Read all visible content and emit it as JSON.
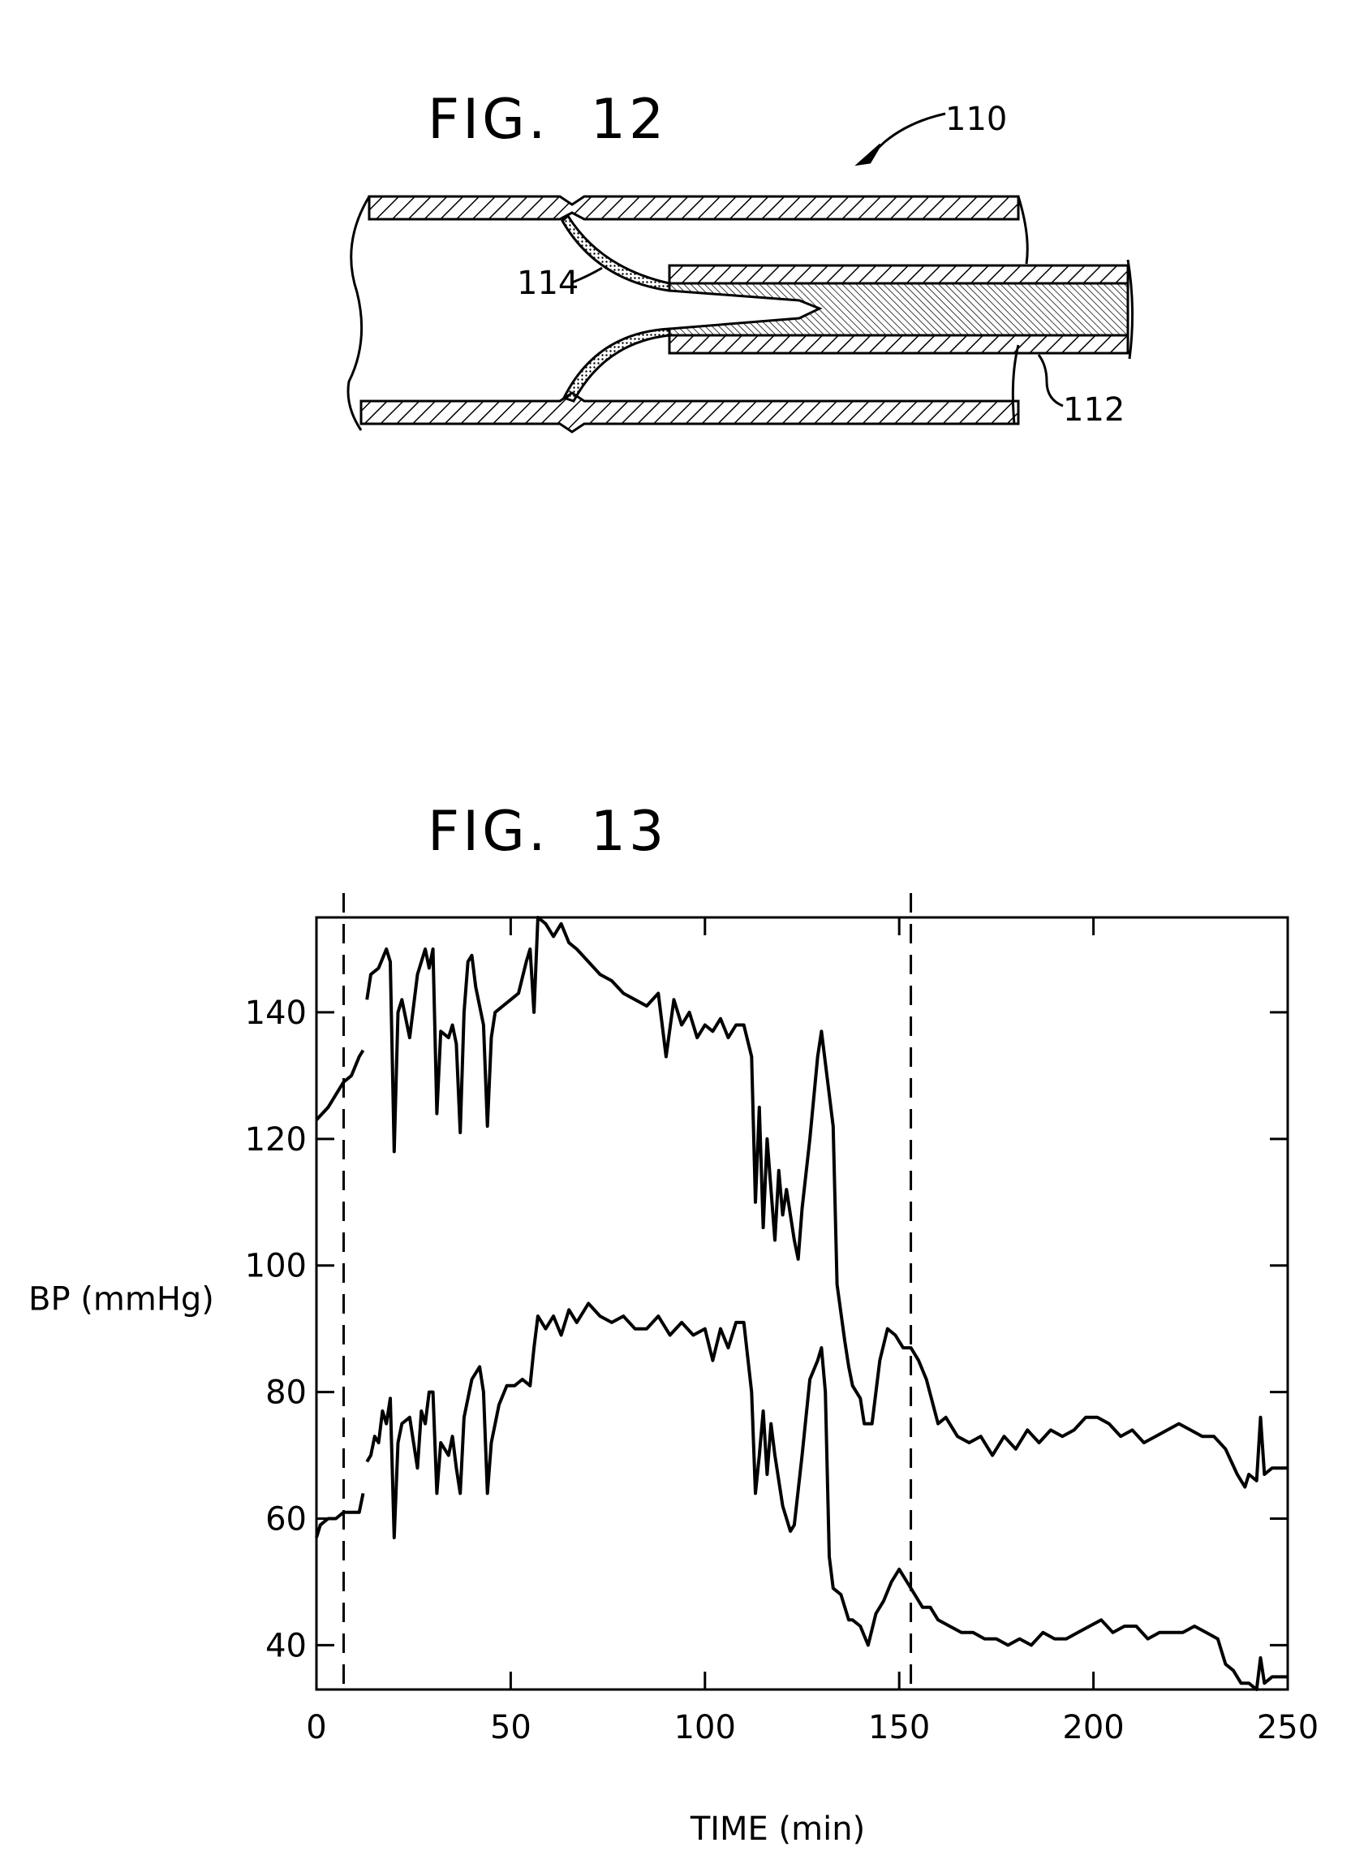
{
  "fig12": {
    "title": "FIG.  12",
    "ref_device": "110",
    "ref_flap": "114",
    "ref_catheter": "112"
  },
  "fig13": {
    "title": "FIG.  13"
  },
  "chart_data": {
    "type": "line",
    "title": "FIG.  13",
    "xlabel": "TIME (min)",
    "ylabel": "BP (mmHg)",
    "xlim": [
      0,
      250
    ],
    "ylim": [
      33,
      155
    ],
    "x_ticks": [
      0,
      50,
      100,
      150,
      200,
      250
    ],
    "y_ticks": [
      40,
      60,
      80,
      100,
      120,
      140
    ],
    "x_tick_labels": [
      "0",
      "50",
      "100",
      "150",
      "200",
      "250"
    ],
    "y_tick_labels": [
      "40",
      "60",
      "80",
      "100",
      "120",
      "140"
    ],
    "grid": false,
    "vertical_markers": [
      7,
      153
    ],
    "series": [
      {
        "segments": [
          [
            [
              0,
              123
            ],
            [
              3,
              125
            ],
            [
              5,
              127
            ],
            [
              7,
              129
            ],
            [
              9,
              130
            ],
            [
              11,
              133
            ],
            [
              12,
              134
            ]
          ],
          [
            [
              13,
              142
            ],
            [
              14,
              146
            ],
            [
              16,
              147
            ],
            [
              18,
              150
            ],
            [
              19,
              148
            ],
            [
              20,
              118
            ],
            [
              21,
              140
            ],
            [
              22,
              142
            ],
            [
              24,
              136
            ],
            [
              26,
              146
            ],
            [
              28,
              150
            ],
            [
              29,
              147
            ],
            [
              30,
              150
            ],
            [
              31,
              124
            ],
            [
              32,
              137
            ],
            [
              34,
              136
            ],
            [
              35,
              138
            ],
            [
              36,
              135
            ],
            [
              37,
              121
            ],
            [
              38,
              140
            ],
            [
              39,
              148
            ],
            [
              40,
              149
            ],
            [
              41,
              144
            ],
            [
              43,
              138
            ],
            [
              44,
              122
            ],
            [
              45,
              136
            ],
            [
              46,
              140
            ],
            [
              48,
              141
            ],
            [
              50,
              142
            ],
            [
              52,
              143
            ],
            [
              54,
              148
            ],
            [
              55,
              150
            ],
            [
              56,
              140
            ],
            [
              57,
              155
            ],
            [
              59,
              154
            ],
            [
              61,
              152
            ],
            [
              63,
              154
            ],
            [
              65,
              151
            ],
            [
              67,
              150
            ],
            [
              70,
              148
            ],
            [
              73,
              146
            ],
            [
              76,
              145
            ],
            [
              79,
              143
            ],
            [
              82,
              142
            ],
            [
              85,
              141
            ],
            [
              88,
              143
            ],
            [
              90,
              133
            ],
            [
              92,
              142
            ],
            [
              94,
              138
            ],
            [
              96,
              140
            ],
            [
              98,
              136
            ],
            [
              100,
              138
            ],
            [
              102,
              137
            ],
            [
              104,
              139
            ],
            [
              106,
              136
            ],
            [
              108,
              138
            ],
            [
              110,
              138
            ],
            [
              112,
              133
            ],
            [
              113,
              110
            ],
            [
              114,
              125
            ],
            [
              115,
              106
            ],
            [
              116,
              120
            ],
            [
              118,
              104
            ],
            [
              119,
              115
            ],
            [
              120,
              108
            ],
            [
              121,
              112
            ],
            [
              123,
              104
            ],
            [
              124,
              101
            ],
            [
              125,
              109
            ],
            [
              127,
              120
            ],
            [
              129,
              133
            ],
            [
              130,
              137
            ],
            [
              131,
              132
            ],
            [
              133,
              122
            ],
            [
              134,
              97
            ],
            [
              136,
              88
            ],
            [
              137,
              84
            ],
            [
              138,
              81
            ],
            [
              140,
              79
            ],
            [
              141,
              75
            ],
            [
              143,
              75
            ],
            [
              145,
              85
            ],
            [
              147,
              90
            ],
            [
              149,
              89
            ],
            [
              151,
              87
            ],
            [
              153,
              87
            ],
            [
              155,
              85
            ],
            [
              157,
              82
            ],
            [
              160,
              75
            ],
            [
              162,
              76
            ],
            [
              165,
              73
            ],
            [
              168,
              72
            ],
            [
              171,
              73
            ],
            [
              174,
              70
            ],
            [
              177,
              73
            ],
            [
              180,
              71
            ],
            [
              183,
              74
            ],
            [
              186,
              72
            ],
            [
              189,
              74
            ],
            [
              192,
              73
            ],
            [
              195,
              74
            ],
            [
              198,
              76
            ],
            [
              201,
              76
            ],
            [
              204,
              75
            ],
            [
              207,
              73
            ],
            [
              210,
              74
            ],
            [
              213,
              72
            ],
            [
              216,
              73
            ],
            [
              219,
              74
            ],
            [
              222,
              75
            ],
            [
              225,
              74
            ],
            [
              228,
              73
            ],
            [
              231,
              73
            ],
            [
              234,
              71
            ],
            [
              237,
              67
            ],
            [
              239,
              65
            ],
            [
              240,
              67
            ],
            [
              242,
              66
            ],
            [
              243,
              76
            ],
            [
              244,
              67
            ],
            [
              246,
              68
            ],
            [
              248,
              68
            ],
            [
              250,
              68
            ]
          ]
        ]
      },
      {
        "segments": [
          [
            [
              0,
              57
            ],
            [
              1,
              59
            ],
            [
              3,
              60
            ],
            [
              5,
              60
            ],
            [
              7,
              61
            ],
            [
              9,
              61
            ],
            [
              11,
              61
            ],
            [
              12,
              64
            ]
          ],
          [
            [
              13,
              69
            ],
            [
              14,
              70
            ],
            [
              15,
              73
            ],
            [
              16,
              72
            ],
            [
              17,
              77
            ],
            [
              18,
              75
            ],
            [
              19,
              79
            ],
            [
              20,
              57
            ],
            [
              21,
              72
            ],
            [
              22,
              75
            ],
            [
              24,
              76
            ],
            [
              26,
              68
            ],
            [
              27,
              77
            ],
            [
              28,
              75
            ],
            [
              29,
              80
            ],
            [
              30,
              80
            ],
            [
              31,
              64
            ],
            [
              32,
              72
            ],
            [
              34,
              70
            ],
            [
              35,
              73
            ],
            [
              36,
              68
            ],
            [
              37,
              64
            ],
            [
              38,
              76
            ],
            [
              40,
              82
            ],
            [
              42,
              84
            ],
            [
              43,
              80
            ],
            [
              44,
              64
            ],
            [
              45,
              72
            ],
            [
              47,
              78
            ],
            [
              49,
              81
            ],
            [
              51,
              81
            ],
            [
              53,
              82
            ],
            [
              55,
              81
            ],
            [
              56,
              87
            ],
            [
              57,
              92
            ],
            [
              59,
              90
            ],
            [
              61,
              92
            ],
            [
              63,
              89
            ],
            [
              65,
              93
            ],
            [
              67,
              91
            ],
            [
              70,
              94
            ],
            [
              73,
              92
            ],
            [
              76,
              91
            ],
            [
              79,
              92
            ],
            [
              82,
              90
            ],
            [
              85,
              90
            ],
            [
              88,
              92
            ],
            [
              91,
              89
            ],
            [
              94,
              91
            ],
            [
              97,
              89
            ],
            [
              100,
              90
            ],
            [
              102,
              85
            ],
            [
              104,
              90
            ],
            [
              106,
              87
            ],
            [
              108,
              91
            ],
            [
              110,
              91
            ],
            [
              112,
              80
            ],
            [
              113,
              64
            ],
            [
              114,
              70
            ],
            [
              115,
              77
            ],
            [
              116,
              67
            ],
            [
              117,
              75
            ],
            [
              118,
              70
            ],
            [
              120,
              62
            ],
            [
              122,
              58
            ],
            [
              123,
              59
            ],
            [
              125,
              70
            ],
            [
              127,
              82
            ],
            [
              129,
              85
            ],
            [
              130,
              87
            ],
            [
              131,
              80
            ],
            [
              132,
              54
            ],
            [
              133,
              49
            ],
            [
              135,
              48
            ],
            [
              137,
              44
            ],
            [
              138,
              44
            ],
            [
              140,
              43
            ],
            [
              142,
              40
            ],
            [
              144,
              45
            ],
            [
              146,
              47
            ],
            [
              148,
              50
            ],
            [
              150,
              52
            ],
            [
              152,
              50
            ],
            [
              154,
              48
            ],
            [
              156,
              46
            ],
            [
              158,
              46
            ],
            [
              160,
              44
            ],
            [
              163,
              43
            ],
            [
              166,
              42
            ],
            [
              169,
              42
            ],
            [
              172,
              41
            ],
            [
              175,
              41
            ],
            [
              178,
              40
            ],
            [
              181,
              41
            ],
            [
              184,
              40
            ],
            [
              187,
              42
            ],
            [
              190,
              41
            ],
            [
              193,
              41
            ],
            [
              196,
              42
            ],
            [
              199,
              43
            ],
            [
              202,
              44
            ],
            [
              205,
              42
            ],
            [
              208,
              43
            ],
            [
              211,
              43
            ],
            [
              214,
              41
            ],
            [
              217,
              42
            ],
            [
              220,
              42
            ],
            [
              223,
              42
            ],
            [
              226,
              43
            ],
            [
              229,
              42
            ],
            [
              232,
              41
            ],
            [
              234,
              37
            ],
            [
              236,
              36
            ],
            [
              238,
              34
            ],
            [
              240,
              34
            ],
            [
              242,
              33
            ],
            [
              243,
              38
            ],
            [
              244,
              34
            ],
            [
              246,
              35
            ],
            [
              248,
              35
            ],
            [
              250,
              35
            ]
          ]
        ]
      }
    ]
  }
}
